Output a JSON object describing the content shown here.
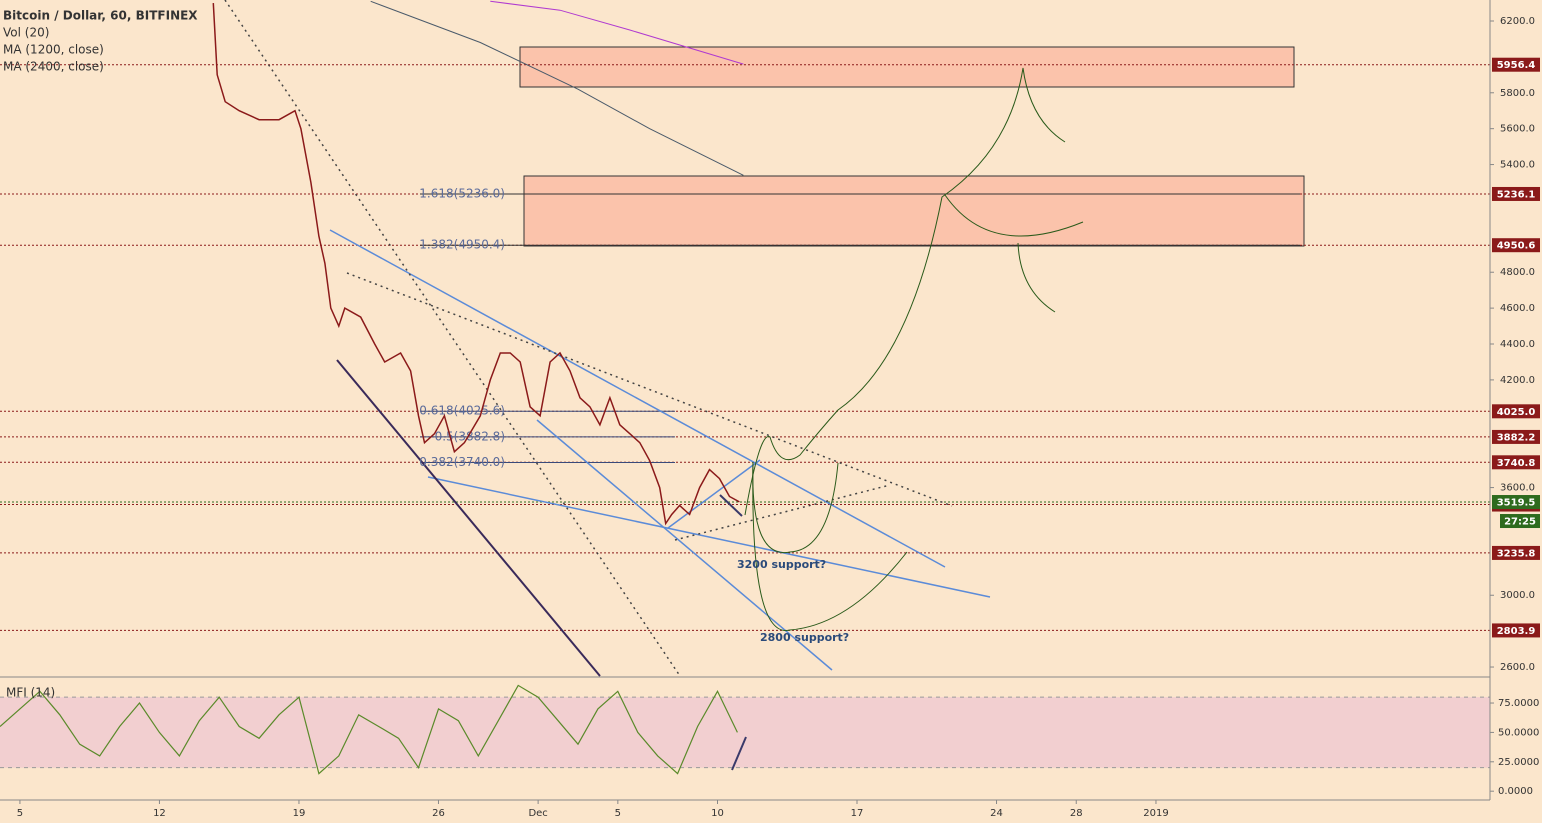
{
  "chart_data": {
    "type": "line",
    "title": "Bitcoin / Dollar, 60, BITFINEX",
    "volume_label": "Vol (20)",
    "xlim": [
      -1,
      73.76
    ],
    "xticks": [
      {
        "value": 0,
        "label": "5"
      },
      {
        "value": 7,
        "label": "12"
      },
      {
        "value": 14,
        "label": "19"
      },
      {
        "value": 21,
        "label": "26"
      },
      {
        "value": 26,
        "label": "Dec"
      },
      {
        "value": 30,
        "label": "5"
      },
      {
        "value": 35,
        "label": "10"
      },
      {
        "value": 42,
        "label": "17"
      },
      {
        "value": 49,
        "label": "24"
      },
      {
        "value": 53,
        "label": "28"
      },
      {
        "value": 57,
        "label": "2019"
      }
    ],
    "ylim": [
      2550,
      6317
    ],
    "yticks": [
      {
        "value": 2600,
        "label": "2600.0"
      },
      {
        "value": 3000,
        "label": "3000.0"
      },
      {
        "value": 3600,
        "label": "3600.0"
      },
      {
        "value": 4200,
        "label": "4200.0"
      },
      {
        "value": 4400,
        "label": "4400.0"
      },
      {
        "value": 4600,
        "label": "4600.0"
      },
      {
        "value": 4800,
        "label": "4800.0"
      },
      {
        "value": 5400,
        "label": "5400.0"
      },
      {
        "value": 5600,
        "label": "5600.0"
      },
      {
        "value": 5800,
        "label": "5800.0"
      },
      {
        "value": 6200,
        "label": "6200.0"
      }
    ],
    "series": [
      {
        "color": "#8b1a1a",
        "x": [
          9.7,
          9.9,
          10.3,
          11.0,
          12.0,
          13.0,
          13.8,
          14.1,
          14.6,
          15.0,
          15.3,
          15.6,
          16.0,
          16.3,
          17.1,
          17.8,
          18.3,
          19.1,
          19.6,
          20.0,
          20.3,
          20.8,
          21.3,
          21.8,
          22.3,
          23.1,
          23.6,
          24.1,
          24.6,
          25.1,
          25.6,
          26.1,
          26.6,
          27.1,
          27.6,
          28.1,
          28.6,
          29.1,
          29.6,
          30.1,
          30.6,
          31.1,
          31.6,
          32.1,
          32.4,
          32.7,
          33.1,
          33.6,
          34.1,
          34.6,
          35.1,
          35.6,
          36.1
        ],
        "values": [
          6300,
          5900,
          5750,
          5700,
          5650,
          5650,
          5700,
          5600,
          5300,
          5000,
          4850,
          4600,
          4500,
          4600,
          4550,
          4400,
          4300,
          4350,
          4250,
          4000,
          3850,
          3900,
          4000,
          3800,
          3850,
          4000,
          4200,
          4350,
          4350,
          4300,
          4050,
          4000,
          4300,
          4350,
          4250,
          4100,
          4050,
          3950,
          4100,
          3950,
          3900,
          3850,
          3750,
          3600,
          3400,
          3450,
          3500,
          3450,
          3600,
          3700,
          3650,
          3550,
          3520
        ]
      },
      {
        "name": "MA (1200, close)",
        "color": "#4a5a6a",
        "x": [
          17.6,
          23.1,
          28.0,
          31.6,
          36.3
        ],
        "values": [
          6310,
          6080,
          5820,
          5600,
          5340
        ]
      },
      {
        "name": "MA (2400, close)",
        "color": "#b03ad0",
        "x": [
          23.6,
          27.1,
          30.6,
          36.3
        ],
        "values": [
          6310,
          6260,
          6150,
          5960
        ]
      }
    ],
    "price_levels": [
      5956.4,
      5236.1,
      4950.6,
      {
        "value": 4025.0,
        "label": "4025.0"
      },
      3882.2,
      3740.8,
      3505.5,
      3235.8,
      2803.9
    ],
    "last_price": 3519.5,
    "countdown": "27:25",
    "fib_levels": [
      {
        "value": 5236.0,
        "label": "1.618(5236.0)"
      },
      {
        "value": 4950.4,
        "label": "1.382(4950.4)"
      },
      {
        "value": 4025.6,
        "label": "0.618(4025.6)"
      },
      {
        "value": 3882.8,
        "label": "0.5(3882.8)"
      },
      {
        "value": 3740.0,
        "label": "0.382(3740.0)"
      }
    ],
    "annotations": [
      "3200 support?",
      "2800 support?"
    ],
    "mfi": {
      "name": "MFI (14)",
      "color": "#5a8a2a",
      "ylim": [
        -7.5,
        96.3
      ],
      "yticks": [
        {
          "value": 0,
          "label": "0.0000"
        },
        {
          "value": 25,
          "label": "25.0000"
        },
        {
          "value": 50,
          "label": "50.0000"
        },
        {
          "value": 75,
          "label": "75.0000"
        }
      ],
      "band": [
        20,
        80
      ],
      "x": [
        -1,
        0,
        1,
        2,
        3,
        4,
        5,
        6,
        7,
        8,
        9,
        10,
        11,
        12,
        13,
        14,
        15,
        16,
        17,
        18,
        19,
        20,
        21,
        22,
        23,
        24,
        25,
        26,
        27,
        28,
        29,
        30,
        31,
        32,
        33,
        34,
        35,
        36
      ],
      "values": [
        55,
        70,
        85,
        65,
        40,
        30,
        55,
        75,
        50,
        30,
        60,
        80,
        55,
        45,
        65,
        80,
        15,
        30,
        65,
        55,
        45,
        20,
        70,
        60,
        30,
        60,
        90,
        80,
        60,
        40,
        70,
        85,
        50,
        30,
        15,
        55,
        85,
        50
      ]
    }
  }
}
